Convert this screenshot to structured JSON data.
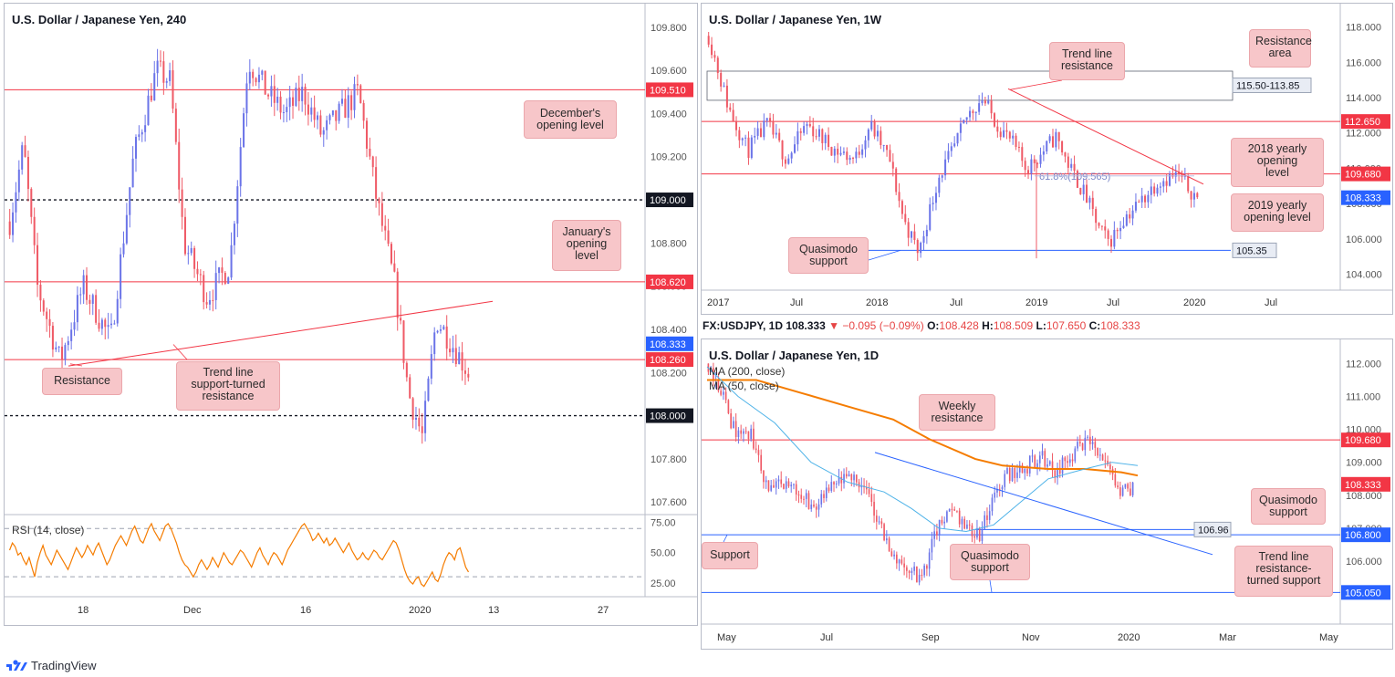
{
  "brand": {
    "name": "TradingView",
    "icon": "tradingview-logo-icon",
    "color": "#2962ff"
  },
  "colors": {
    "up": "#6b74e8",
    "down": "#ef5a66",
    "red_line": "#f23645",
    "blue_line": "#2962ff",
    "ma200": "#f57c00",
    "ma50": "#4fb3e8",
    "rsi": "#f57c00"
  },
  "chart_data": [
    {
      "type": "candlestick",
      "title": "U.S. Dollar / Japanese Yen, 240",
      "y_ticks": [
        "109.800",
        "109.600",
        "109.400",
        "109.200",
        "109.000",
        "108.800",
        "108.600",
        "108.400",
        "108.200",
        "108.000",
        "107.800",
        "107.600"
      ],
      "ylim": [
        107.55,
        109.85
      ],
      "x_ticks": [
        "18",
        "Dec",
        "16",
        "2020",
        "13",
        "27"
      ],
      "price_tags": [
        {
          "label": "109.510",
          "value": 109.51,
          "color": "red"
        },
        {
          "label": "109.000",
          "value": 109.0,
          "color": "black"
        },
        {
          "label": "108.620",
          "value": 108.62,
          "color": "red"
        },
        {
          "label": "108.333",
          "value": 108.333,
          "color": "blue"
        },
        {
          "label": "108.260",
          "value": 108.26,
          "color": "red"
        },
        {
          "label": "108.000",
          "value": 108.0,
          "color": "black"
        }
      ],
      "annotations": [
        {
          "id": "december",
          "text": "December's\nopening level"
        },
        {
          "id": "january",
          "text": "January's\nopening\nlevel"
        },
        {
          "id": "resistance",
          "text": "Resistance"
        },
        {
          "id": "trendline",
          "text": "Trend line\nsupport-turned\nresistance"
        }
      ],
      "rsi": {
        "label": "RSI (14, close)",
        "ticks": [
          "75.00",
          "50.00",
          "25.00"
        ],
        "ylim": [
          15,
          80
        ],
        "levels": [
          70,
          30
        ],
        "values": [
          52,
          58,
          55,
          48,
          50,
          44,
          40,
          46,
          38,
          30,
          42,
          50,
          56,
          48,
          44,
          40,
          46,
          52,
          48,
          44,
          40,
          36,
          42,
          48,
          54,
          50,
          46,
          50,
          56,
          52,
          48,
          54,
          58,
          52,
          46,
          40,
          44,
          50,
          56,
          60,
          64,
          60,
          56,
          62,
          68,
          72,
          66,
          60,
          58,
          64,
          70,
          74,
          68,
          64,
          60,
          66,
          72,
          74,
          70,
          64,
          58,
          50,
          44,
          40,
          38,
          34,
          30,
          34,
          40,
          44,
          40,
          36,
          40,
          46,
          42,
          38,
          44,
          50,
          46,
          42,
          40,
          44,
          48,
          52,
          50,
          46,
          42,
          38,
          44,
          50,
          54,
          48,
          44,
          40,
          46,
          50,
          48,
          44,
          40,
          46,
          52,
          56,
          60,
          64,
          68,
          72,
          74,
          70,
          66,
          60,
          62,
          66,
          62,
          58,
          62,
          56,
          58,
          62,
          58,
          54,
          50,
          54,
          58,
          52,
          48,
          44,
          46,
          50,
          46,
          44,
          48,
          52,
          50,
          46,
          44,
          48,
          52,
          56,
          60,
          58,
          52,
          44,
          36,
          30,
          26,
          24,
          28,
          30,
          24,
          22,
          26,
          30,
          34,
          28,
          26,
          32,
          40,
          46,
          50,
          48,
          44,
          52,
          54,
          46,
          38,
          34
        ]
      }
    },
    {
      "type": "candlestick",
      "title": "U.S. Dollar / Japanese Yen, 1W",
      "y_ticks": [
        "118.000",
        "116.000",
        "114.000",
        "112.000",
        "110.000",
        "108.000",
        "106.000",
        "104.000"
      ],
      "ylim": [
        103.2,
        118.6
      ],
      "x_ticks": [
        "2017",
        "Jul",
        "2018",
        "Jul",
        "2019",
        "Jul",
        "2020",
        "Jul"
      ],
      "price_tags": [
        {
          "label": "112.650",
          "value": 112.65,
          "color": "red"
        },
        {
          "label": "109.680",
          "value": 109.68,
          "color": "red"
        },
        {
          "label": "108.333",
          "value": 108.333,
          "color": "blue"
        },
        {
          "label": "115.50-113.85",
          "value": 115.5,
          "color": "box"
        },
        {
          "label": "105.35",
          "value": 105.35,
          "color": "box"
        }
      ],
      "fib_label": "61.8%(109.565)",
      "annotations": [
        {
          "id": "trendres",
          "text": "Trend line\nresistance"
        },
        {
          "id": "resarea",
          "text": "Resistance\narea"
        },
        {
          "id": "y2018",
          "text": "2018 yearly\nopening\nlevel"
        },
        {
          "id": "y2019",
          "text": "2019 yearly\nopening level"
        },
        {
          "id": "qm",
          "text": "Quasimodo\nsupport"
        }
      ]
    },
    {
      "type": "candlestick",
      "title": "U.S. Dollar / Japanese Yen, 1D",
      "info": {
        "symbol": "FX:USDJPY, 1D",
        "last": "108.333",
        "change": "▼ −0.095 (−0.09%)",
        "o_label": "O:",
        "o": "108.428",
        "h_label": "H:",
        "h": "108.509",
        "l_label": "L:",
        "l": "107.650",
        "c_label": "C:",
        "c": "108.333"
      },
      "legend": [
        "MA (200, close)",
        "MA (50, close)"
      ],
      "y_ticks": [
        "112.000",
        "111.000",
        "110.000",
        "109.000",
        "108.000",
        "107.000",
        "106.000",
        "105.000"
      ],
      "ylim": [
        104.2,
        112.4
      ],
      "x_ticks": [
        "May",
        "Jul",
        "Sep",
        "Nov",
        "2020",
        "Mar",
        "May"
      ],
      "price_tags": [
        {
          "label": "109.680",
          "value": 109.68,
          "color": "red"
        },
        {
          "label": "108.333",
          "value": 108.333,
          "color": "red"
        },
        {
          "label": "106.800",
          "value": 106.8,
          "color": "blue"
        },
        {
          "label": "105.050",
          "value": 105.05,
          "color": "blue"
        },
        {
          "label": "106.96",
          "value": 106.96,
          "color": "box"
        }
      ],
      "annotations": [
        {
          "id": "weekly",
          "text": "Weekly\nresistance"
        },
        {
          "id": "qm1",
          "text": "Quasimodo\nsupport"
        },
        {
          "id": "support",
          "text": "Support"
        },
        {
          "id": "qm2",
          "text": "Quasimodo\nsupport"
        },
        {
          "id": "tlrts",
          "text": "Trend line\nresistance-\nturned support"
        }
      ]
    }
  ]
}
